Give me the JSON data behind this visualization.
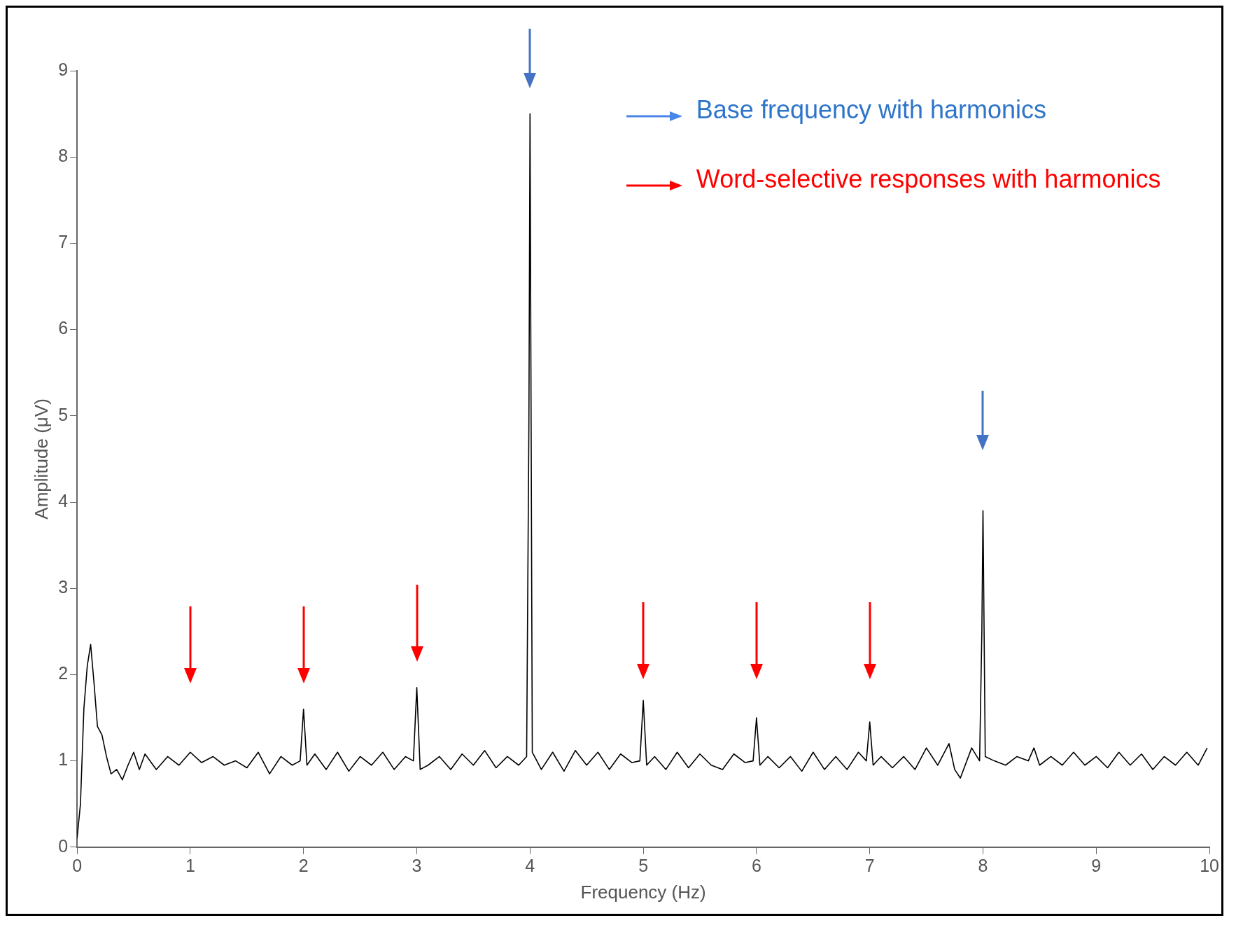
{
  "chart_data": {
    "type": "line",
    "xlabel": "Frequency (Hz)",
    "ylabel": "Amplitude (μV)",
    "annotations": [
      "Base frequency with harmonics",
      "Word-selective responses with harmonics"
    ],
    "xlim": [
      0,
      10
    ],
    "ylim": [
      0,
      9
    ],
    "xticks": [
      0,
      1,
      2,
      3,
      4,
      5,
      6,
      7,
      8,
      9,
      10
    ],
    "yticks": [
      0,
      1,
      2,
      3,
      4,
      5,
      6,
      7,
      8,
      9
    ],
    "grid": false,
    "legend": false,
    "marker": "none",
    "line_style": "solid",
    "series": [
      {
        "color": "#000000",
        "x": [
          0,
          0.03,
          0.06,
          0.09,
          0.12,
          0.15,
          0.18,
          0.22,
          0.26,
          0.3,
          0.35,
          0.4,
          0.45,
          0.5,
          0.55,
          0.6,
          0.7,
          0.8,
          0.9,
          1.0,
          1.1,
          1.2,
          1.3,
          1.4,
          1.5,
          1.6,
          1.7,
          1.8,
          1.9,
          1.97,
          2.0,
          2.03,
          2.1,
          2.2,
          2.3,
          2.4,
          2.5,
          2.6,
          2.7,
          2.8,
          2.9,
          2.97,
          3.0,
          3.03,
          3.1,
          3.2,
          3.3,
          3.4,
          3.5,
          3.6,
          3.7,
          3.8,
          3.9,
          3.97,
          3.99,
          4.0,
          4.02,
          4.1,
          4.2,
          4.3,
          4.4,
          4.5,
          4.6,
          4.7,
          4.8,
          4.9,
          4.97,
          5.0,
          5.03,
          5.1,
          5.2,
          5.3,
          5.4,
          5.5,
          5.6,
          5.7,
          5.8,
          5.9,
          5.97,
          6.0,
          6.03,
          6.1,
          6.2,
          6.3,
          6.4,
          6.5,
          6.6,
          6.7,
          6.8,
          6.9,
          6.97,
          7.0,
          7.03,
          7.1,
          7.2,
          7.3,
          7.4,
          7.5,
          7.6,
          7.7,
          7.75,
          7.8,
          7.9,
          7.97,
          7.99,
          8.0,
          8.02,
          8.1,
          8.2,
          8.3,
          8.4,
          8.45,
          8.5,
          8.6,
          8.7,
          8.8,
          8.9,
          9.0,
          9.1,
          9.2,
          9.3,
          9.4,
          9.5,
          9.6,
          9.7,
          9.8,
          9.9,
          9.98
        ],
        "values": [
          0.1,
          0.5,
          1.6,
          2.1,
          2.35,
          1.9,
          1.4,
          1.3,
          1.05,
          0.85,
          0.9,
          0.78,
          0.95,
          1.1,
          0.9,
          1.08,
          0.9,
          1.05,
          0.95,
          1.1,
          0.98,
          1.05,
          0.95,
          1.0,
          0.92,
          1.1,
          0.85,
          1.05,
          0.95,
          1.0,
          1.6,
          0.95,
          1.08,
          0.9,
          1.1,
          0.88,
          1.05,
          0.95,
          1.1,
          0.9,
          1.05,
          1.0,
          1.85,
          0.9,
          0.95,
          1.05,
          0.9,
          1.08,
          0.95,
          1.12,
          0.92,
          1.05,
          0.95,
          1.05,
          4.9,
          8.5,
          1.1,
          0.9,
          1.1,
          0.88,
          1.12,
          0.95,
          1.1,
          0.9,
          1.08,
          0.98,
          1.0,
          1.7,
          0.95,
          1.05,
          0.9,
          1.1,
          0.92,
          1.08,
          0.95,
          0.9,
          1.08,
          0.98,
          1.0,
          1.5,
          0.95,
          1.05,
          0.92,
          1.05,
          0.88,
          1.1,
          0.9,
          1.05,
          0.9,
          1.1,
          1.0,
          1.45,
          0.95,
          1.05,
          0.92,
          1.05,
          0.9,
          1.15,
          0.95,
          1.2,
          0.9,
          0.8,
          1.15,
          1.0,
          2.5,
          3.9,
          1.05,
          1.0,
          0.95,
          1.05,
          1.0,
          1.15,
          0.95,
          1.05,
          0.95,
          1.1,
          0.95,
          1.05,
          0.92,
          1.1,
          0.95,
          1.08,
          0.9,
          1.05,
          0.95,
          1.1,
          0.95,
          1.15
        ]
      }
    ]
  }
}
